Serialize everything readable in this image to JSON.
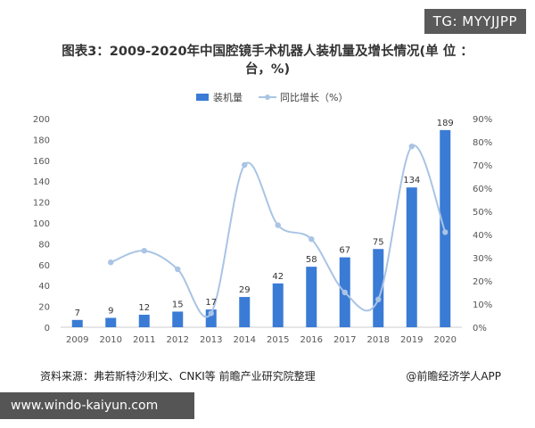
{
  "tag_text": "TG: MYYJJPP",
  "chart_data": {
    "type": "bar",
    "title": "图表3：2009-2020年中国腔镜手术机器人装机量及增长情况(单 位 ：台，%)",
    "categories": [
      "2009",
      "2010",
      "2011",
      "2012",
      "2013",
      "2014",
      "2015",
      "2016",
      "2017",
      "2018",
      "2019",
      "2020"
    ],
    "series": [
      {
        "name": "装机量",
        "type": "bar",
        "axis": "left",
        "color": "#3a7bd5",
        "values": [
          7,
          9,
          12,
          15,
          17,
          29,
          42,
          58,
          67,
          75,
          134,
          189
        ]
      },
      {
        "name": "同比增长（%）",
        "type": "line",
        "axis": "right",
        "color": "#a9c4e4",
        "values": [
          null,
          28,
          33,
          25,
          6,
          70,
          44,
          38,
          15,
          12,
          78,
          41
        ]
      }
    ],
    "y_left": {
      "min": 0,
      "max": 200,
      "step": 20,
      "ticks": [
        "0",
        "20",
        "40",
        "60",
        "80",
        "100",
        "120",
        "140",
        "160",
        "180",
        "200"
      ]
    },
    "y_right": {
      "min": 0,
      "max": 90,
      "step": 10,
      "ticks": [
        "0%",
        "10%",
        "20%",
        "30%",
        "40%",
        "50%",
        "60%",
        "70%",
        "80%",
        "90%"
      ]
    },
    "legend_position": "top-center",
    "grid": false
  },
  "source_text": "资料来源：弗若斯特沙利文、CNKI等 前瞻产业研究院整理",
  "credit_text": "@前瞻经济学人APP",
  "watermark_url": "www.windo-kaiyun.com"
}
